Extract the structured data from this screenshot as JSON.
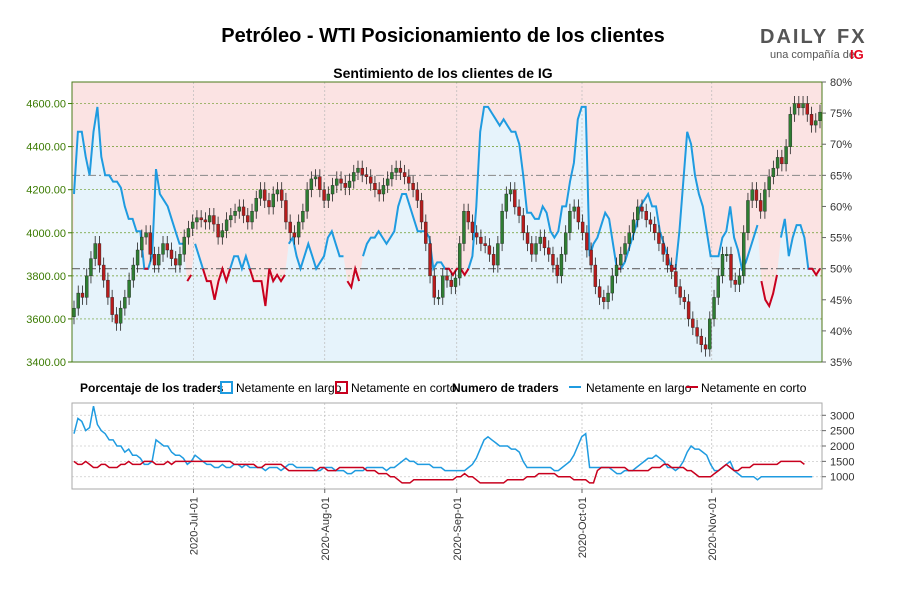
{
  "title": "Petróleo - WTI Posicionamiento de los clientes",
  "subtitle": "Sentimiento de los clientes de IG",
  "logo": {
    "brand_left": "DAILY",
    "brand_right": "FX",
    "tagline": "una compañía de",
    "ig": "IG"
  },
  "colors": {
    "long": "#1f9be0",
    "short": "#c8001e",
    "up_candle": "#2e7d32",
    "down_candle": "#b71c1c",
    "long_fill": "#e6f3fb",
    "short_fill": "#fbe3e3",
    "price_axis": "#3a7a00"
  },
  "legend": {
    "pct_label": "Porcentaje de los traders",
    "pct_long": "Netamente en largo",
    "pct_short": "Netamente en corto",
    "num_label": "Numero de traders",
    "num_long": "Netamente en largo",
    "num_short": "Netamente en corto"
  },
  "chart_data": {
    "type": "candlestick_with_sentiment",
    "price_ticks": [
      "3400.00",
      "3600.00",
      "3800.00",
      "4000.00",
      "4200.00",
      "4400.00",
      "4600.00"
    ],
    "pct_ticks": [
      "35%",
      "40%",
      "45%",
      "50%",
      "55%",
      "60%",
      "65%",
      "70%",
      "75%",
      "80%"
    ],
    "traders_ticks": [
      "1000",
      "1500",
      "2000",
      "2500",
      "3000"
    ],
    "x_ticks": [
      "2020-Jul-01",
      "2020-Aug-01",
      "2020-Sep-01",
      "2020-Oct-01",
      "2020-Nov-01"
    ],
    "price_range": [
      3400,
      4700
    ],
    "pct_range": [
      35,
      80
    ],
    "traders_range": [
      600,
      3400
    ],
    "reference_lines_pct": [
      50,
      65
    ],
    "pct_long_series": [
      62,
      72,
      72,
      68,
      65,
      72,
      76,
      68,
      65,
      65,
      64,
      64,
      63,
      60,
      58,
      58,
      56,
      56,
      50,
      50,
      52,
      66,
      62,
      61,
      60,
      58,
      56,
      54,
      54,
      48,
      49,
      54,
      52,
      50,
      48,
      48,
      45,
      48,
      50,
      48,
      50,
      52,
      52,
      50,
      52,
      50,
      48,
      48,
      48,
      44,
      50,
      48,
      49,
      48,
      49,
      54,
      55,
      52,
      50,
      52,
      54,
      52,
      50,
      51,
      52,
      55,
      56,
      54,
      52,
      52,
      48,
      47,
      50,
      48,
      52,
      54,
      55,
      55,
      56,
      55,
      54,
      55,
      56,
      60,
      62,
      62,
      60,
      58,
      56,
      56,
      56,
      55,
      50,
      51,
      51,
      50,
      50,
      49,
      50,
      50,
      49,
      50,
      52,
      60,
      72,
      76,
      76,
      75,
      74,
      73,
      74,
      73,
      72,
      72,
      70,
      65,
      59,
      59,
      58,
      58,
      60,
      59,
      56,
      55,
      56,
      60,
      60,
      64,
      67,
      74,
      76,
      76,
      52,
      54,
      55,
      57,
      59,
      58,
      54,
      50,
      50,
      51,
      53,
      55,
      57,
      60,
      61,
      62,
      60,
      60,
      56,
      54,
      52,
      50,
      50,
      56,
      64,
      72,
      70,
      65,
      62,
      60,
      56,
      52,
      52,
      52,
      55,
      56,
      60,
      55,
      53,
      50,
      51,
      53,
      55,
      57,
      48,
      45,
      44,
      46,
      49,
      55,
      58,
      52,
      55,
      57,
      57,
      55,
      50,
      50,
      49,
      50
    ],
    "pct_short_series": [
      38,
      28,
      28,
      32,
      35,
      28,
      24,
      32,
      35,
      35,
      36,
      36,
      37,
      40,
      42,
      42,
      44,
      44,
      50,
      50,
      48,
      34,
      38,
      39,
      40,
      42,
      44,
      46,
      46,
      52,
      51,
      46,
      48,
      50,
      52,
      52,
      55,
      52,
      50,
      52,
      50,
      48,
      48,
      50,
      48,
      50,
      52,
      52,
      52,
      56,
      50,
      52,
      51,
      52,
      51,
      46,
      45,
      48,
      50,
      48,
      46,
      48,
      50,
      49,
      48,
      45,
      44,
      46,
      48,
      48,
      52,
      53,
      50,
      52,
      48,
      46,
      45,
      45,
      44,
      45,
      46,
      45,
      44,
      40,
      38,
      38,
      40,
      42,
      44,
      44,
      44,
      45,
      50,
      49,
      49,
      50,
      50,
      51,
      50,
      50,
      51,
      50,
      48,
      40,
      28,
      24,
      24,
      25,
      26,
      27,
      26,
      27,
      28,
      28,
      30,
      35,
      41,
      41,
      42,
      42,
      40,
      41,
      44,
      45,
      44,
      40,
      40,
      36,
      33,
      26,
      24,
      24,
      48,
      46,
      45,
      43,
      41,
      42,
      46,
      50,
      50,
      49,
      47,
      45,
      43,
      40,
      39,
      38,
      40,
      40,
      44,
      46,
      48,
      50,
      50,
      44,
      36,
      28,
      30,
      35,
      38,
      40,
      44,
      48,
      48,
      48,
      45,
      44,
      40,
      45,
      47,
      50,
      49,
      47,
      45,
      43,
      52,
      55,
      56,
      54,
      51,
      45,
      42,
      48,
      45,
      43,
      43,
      45,
      50,
      50,
      51,
      50
    ],
    "price_close": [
      3650,
      3720,
      3700,
      3800,
      3880,
      3950,
      3850,
      3780,
      3700,
      3620,
      3580,
      3650,
      3700,
      3780,
      3850,
      3920,
      3980,
      4000,
      3900,
      3850,
      3900,
      3950,
      3920,
      3880,
      3850,
      3900,
      3980,
      4020,
      4050,
      4070,
      4060,
      4050,
      4080,
      4040,
      3980,
      4010,
      4060,
      4080,
      4100,
      4120,
      4080,
      4050,
      4100,
      4160,
      4200,
      4150,
      4120,
      4180,
      4200,
      4150,
      4050,
      4000,
      3980,
      4050,
      4100,
      4200,
      4250,
      4260,
      4200,
      4150,
      4180,
      4220,
      4250,
      4230,
      4210,
      4240,
      4280,
      4300,
      4270,
      4260,
      4230,
      4200,
      4180,
      4220,
      4250,
      4280,
      4300,
      4280,
      4260,
      4230,
      4200,
      4150,
      4050,
      3950,
      3800,
      3700,
      3700,
      3800,
      3780,
      3750,
      3790,
      3950,
      4100,
      4050,
      4000,
      3980,
      3950,
      3940,
      3900,
      3850,
      3950,
      4100,
      4180,
      4200,
      4120,
      4080,
      4000,
      3950,
      3900,
      3950,
      3980,
      3930,
      3900,
      3850,
      3800,
      3900,
      4000,
      4100,
      4120,
      4050,
      4000,
      3920,
      3850,
      3750,
      3700,
      3680,
      3720,
      3800,
      3850,
      3900,
      3950,
      4000,
      4060,
      4120,
      4100,
      4060,
      4040,
      4000,
      3950,
      3900,
      3850,
      3820,
      3750,
      3700,
      3680,
      3600,
      3560,
      3520,
      3480,
      3460,
      3600,
      3700,
      3800,
      3900,
      3900,
      3780,
      3760,
      3800,
      4000,
      4150,
      4200,
      4150,
      4100,
      4200,
      4260,
      4300,
      4350,
      4320,
      4400,
      4550,
      4600,
      4580,
      4600,
      4550,
      4500,
      4520,
      4560
    ],
    "traders_long_series": [
      2400,
      2900,
      2800,
      2500,
      2600,
      3300,
      2700,
      2500,
      2400,
      2200,
      2200,
      2000,
      2000,
      1800,
      1900,
      1700,
      1700,
      1600,
      1400,
      1400,
      1500,
      2200,
      2100,
      2000,
      2000,
      1800,
      1700,
      1700,
      1600,
      1400,
      1500,
      1700,
      1600,
      1500,
      1400,
      1400,
      1300,
      1300,
      1400,
      1300,
      1300,
      1400,
      1400,
      1300,
      1400,
      1300,
      1300,
      1300,
      1300,
      1200,
      1300,
      1300,
      1300,
      1200,
      1300,
      1400,
      1400,
      1300,
      1300,
      1300,
      1300,
      1300,
      1200,
      1200,
      1300,
      1300,
      1300,
      1200,
      1200,
      1200,
      1100,
      1100,
      1200,
      1200,
      1200,
      1300,
      1300,
      1300,
      1300,
      1300,
      1200,
      1300,
      1300,
      1400,
      1500,
      1600,
      1500,
      1500,
      1400,
      1400,
      1400,
      1400,
      1300,
      1300,
      1300,
      1200,
      1200,
      1200,
      1200,
      1200,
      1200,
      1300,
      1400,
      1600,
      1900,
      2200,
      2300,
      2200,
      2100,
      2000,
      2000,
      2000,
      1900,
      1900,
      1800,
      1500,
      1300,
      1300,
      1300,
      1300,
      1300,
      1300,
      1300,
      1200,
      1200,
      1300,
      1400,
      1500,
      1700,
      2000,
      2300,
      2400,
      1300,
      1300,
      1300,
      1300,
      1300,
      1300,
      1200,
      1100,
      1100,
      1200,
      1200,
      1200,
      1300,
      1400,
      1500,
      1600,
      1600,
      1700,
      1600,
      1500,
      1300,
      1300,
      1200,
      1300,
      1500,
      1800,
      2000,
      1900,
      1900,
      1800,
      1700,
      1400,
      1200,
      1200,
      1300,
      1400,
      1500,
      1200,
      1100,
      1000,
      1000,
      1000,
      1000,
      900,
      1000,
      1000,
      1000,
      1000,
      1000,
      1000,
      1000,
      1000,
      1000,
      1000,
      1000,
      1000,
      1000,
      1000
    ],
    "traders_short_series": [
      1500,
      1400,
      1400,
      1500,
      1400,
      1300,
      1300,
      1400,
      1400,
      1300,
      1300,
      1300,
      1400,
      1400,
      1500,
      1400,
      1400,
      1400,
      1500,
      1500,
      1500,
      1400,
      1400,
      1400,
      1500,
      1400,
      1500,
      1500,
      1500,
      1500,
      1500,
      1500,
      1500,
      1500,
      1500,
      1500,
      1500,
      1500,
      1500,
      1500,
      1500,
      1400,
      1400,
      1400,
      1400,
      1400,
      1400,
      1300,
      1300,
      1400,
      1400,
      1400,
      1400,
      1400,
      1300,
      1200,
      1200,
      1200,
      1200,
      1200,
      1200,
      1200,
      1200,
      1300,
      1300,
      1200,
      1200,
      1200,
      1300,
      1300,
      1300,
      1300,
      1300,
      1300,
      1300,
      1200,
      1200,
      1200,
      1100,
      1100,
      1100,
      1000,
      1000,
      900,
      800,
      800,
      800,
      900,
      900,
      900,
      900,
      900,
      900,
      900,
      900,
      900,
      900,
      900,
      1000,
      1000,
      1100,
      1000,
      1000,
      900,
      800,
      800,
      800,
      800,
      800,
      800,
      800,
      900,
      900,
      900,
      900,
      900,
      1000,
      1000,
      1000,
      1100,
      1100,
      1100,
      1100,
      1100,
      1000,
      1000,
      1000,
      1000,
      900,
      900,
      900,
      900,
      800,
      800,
      1200,
      1300,
      1300,
      1300,
      1300,
      1300,
      1300,
      1300,
      1200,
      1200,
      1200,
      1200,
      1200,
      1200,
      1300,
      1300,
      1300,
      1400,
      1400,
      1300,
      1300,
      1300,
      1300,
      1200,
      1200,
      1100,
      1000,
      1000,
      1000,
      1000,
      1100,
      1200,
      1300,
      1400,
      1300,
      1200,
      1200,
      1300,
      1300,
      1300,
      1400,
      1400,
      1400,
      1400,
      1400,
      1400,
      1400,
      1500,
      1500,
      1500,
      1500,
      1500,
      1500,
      1400
    ]
  }
}
